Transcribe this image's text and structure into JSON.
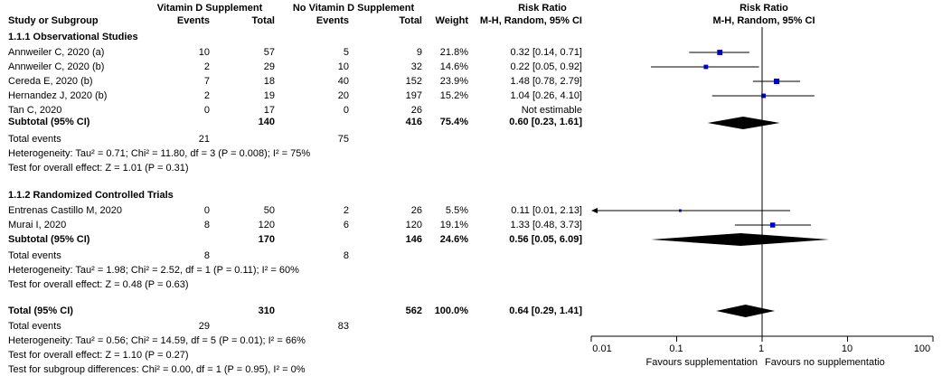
{
  "header": {
    "group1": "Vitamin D Supplement",
    "group2": "No Vitamin D Supplement",
    "study": "Study or Subgroup",
    "events1": "Events",
    "total1": "Total",
    "events2": "Events",
    "total2": "Total",
    "weight": "Weight",
    "rr_title": "Risk Ratio",
    "rr_method": "M-H, Random, 95% CI",
    "plot_title": "Risk Ratio",
    "plot_method": "M-H, Random, 95% CI"
  },
  "subgroups": [
    {
      "title": "1.1.1 Observational Studies",
      "studies": [
        {
          "name": "Annweiler C, 2020 (a)",
          "e1": "10",
          "n1": "57",
          "e2": "5",
          "n2": "9",
          "weight": "21.8%",
          "ci": "0.32 [0.14, 0.71]"
        },
        {
          "name": "Annweiler C, 2020 (b)",
          "e1": "2",
          "n1": "29",
          "e2": "10",
          "n2": "32",
          "weight": "14.6%",
          "ci": "0.22 [0.05, 0.92]"
        },
        {
          "name": "Cereda E, 2020 (b)",
          "e1": "7",
          "n1": "18",
          "e2": "40",
          "n2": "152",
          "weight": "23.9%",
          "ci": "1.48 [0.78, 2.79]"
        },
        {
          "name": "Hernandez J, 2020 (b)",
          "e1": "2",
          "n1": "19",
          "e2": "20",
          "n2": "197",
          "weight": "15.2%",
          "ci": "1.04 [0.26, 4.10]"
        },
        {
          "name": "Tan C, 2020",
          "e1": "0",
          "n1": "17",
          "e2": "0",
          "n2": "26",
          "weight": "",
          "ci": "Not estimable"
        }
      ],
      "subtotal": {
        "label": "Subtotal (95% CI)",
        "n1": "140",
        "n2": "416",
        "weight": "75.4%",
        "ci": "0.60 [0.23, 1.61]"
      },
      "total_events": {
        "label": "Total events",
        "e1": "21",
        "e2": "75"
      },
      "heterogeneity": "Heterogeneity: Tau² = 0.71; Chi² = 11.80, df = 3 (P = 0.008); I² = 75%",
      "overall": "Test for overall effect: Z = 1.01 (P = 0.31)"
    },
    {
      "title": "1.1.2 Randomized Controlled Trials",
      "studies": [
        {
          "name": "Entrenas Castillo M, 2020",
          "e1": "0",
          "n1": "50",
          "e2": "2",
          "n2": "26",
          "weight": "5.5%",
          "ci": "0.11 [0.01, 2.13]"
        },
        {
          "name": "Murai I, 2020",
          "e1": "8",
          "n1": "120",
          "e2": "6",
          "n2": "120",
          "weight": "19.1%",
          "ci": "1.33 [0.48, 3.73]"
        }
      ],
      "subtotal": {
        "label": "Subtotal (95% CI)",
        "n1": "170",
        "n2": "146",
        "weight": "24.6%",
        "ci": "0.56 [0.05, 6.09]"
      },
      "total_events": {
        "label": "Total events",
        "e1": "8",
        "e2": "8"
      },
      "heterogeneity": "Heterogeneity: Tau² = 1.98; Chi² = 2.52, df = 1 (P = 0.11); I² = 60%",
      "overall": "Test for overall effect: Z = 0.48 (P = 0.63)"
    }
  ],
  "total": {
    "label": "Total (95% CI)",
    "n1": "310",
    "n2": "562",
    "weight": "100.0%",
    "ci": "0.64 [0.29, 1.41]"
  },
  "total_events": {
    "label": "Total events",
    "e1": "29",
    "e2": "83"
  },
  "total_heterogeneity": "Heterogeneity: Tau² = 0.56; Chi² = 14.59, df = 5 (P = 0.01); I² = 66%",
  "total_overall": "Test for overall effect: Z = 1.10 (P = 0.27)",
  "subgroup_diff": "Test for subgroup differences: Chi² = 0.00, df = 1 (P = 0.95), I² = 0%",
  "axis": {
    "ticks": [
      "0.01",
      "0.1",
      "1",
      "10",
      "100"
    ],
    "left_label": "Favours supplementation",
    "right_label": "Favours no supplementatio"
  },
  "colors": {
    "marker": "#0000cc",
    "diamond": "#000000",
    "line": "#000000"
  },
  "chart_data": {
    "type": "forest",
    "scale": "log",
    "xlim": [
      0.01,
      100
    ],
    "null_line": 1,
    "studies": [
      {
        "name": "Annweiler C, 2020 (a)",
        "rr": 0.32,
        "lo": 0.14,
        "hi": 0.71,
        "weight": 21.8
      },
      {
        "name": "Annweiler C, 2020 (b)",
        "rr": 0.22,
        "lo": 0.05,
        "hi": 0.92,
        "weight": 14.6
      },
      {
        "name": "Cereda E, 2020 (b)",
        "rr": 1.48,
        "lo": 0.78,
        "hi": 2.79,
        "weight": 23.9
      },
      {
        "name": "Hernandez J, 2020 (b)",
        "rr": 1.04,
        "lo": 0.26,
        "hi": 4.1,
        "weight": 15.2
      },
      {
        "name": "Entrenas Castillo M, 2020",
        "rr": 0.11,
        "lo": 0.01,
        "hi": 2.13,
        "weight": 5.5
      },
      {
        "name": "Murai I, 2020",
        "rr": 1.33,
        "lo": 0.48,
        "hi": 3.73,
        "weight": 19.1
      }
    ],
    "diamonds": [
      {
        "name": "Subtotal (95% CI)",
        "rr": 0.6,
        "lo": 0.23,
        "hi": 1.61
      },
      {
        "name": "Subtotal (95% CI)",
        "rr": 0.56,
        "lo": 0.05,
        "hi": 6.09
      },
      {
        "name": "Total (95% CI)",
        "rr": 0.64,
        "lo": 0.29,
        "hi": 1.41
      }
    ]
  }
}
